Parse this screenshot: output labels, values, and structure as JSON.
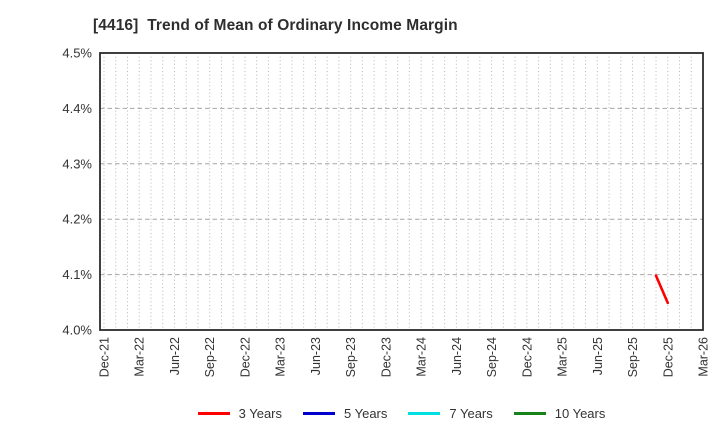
{
  "window": {
    "background": "#ffffff"
  },
  "chart_data": {
    "type": "line",
    "title": "[4416]  Trend of Mean of Ordinary Income Margin",
    "title_color": "#2e2e2e",
    "xlabel": "",
    "ylabel": "",
    "ylim": [
      4.0,
      4.5
    ],
    "y_tick_step": 0.1,
    "y_tick_labels": [
      "4.0%",
      "4.1%",
      "4.2%",
      "4.3%",
      "4.4%",
      "4.5%"
    ],
    "x_tick_labels": [
      "Dec-21",
      "Mar-22",
      "Jun-22",
      "Sep-22",
      "Dec-22",
      "Mar-23",
      "Jun-23",
      "Sep-23",
      "Dec-23",
      "Mar-24",
      "Jun-24",
      "Sep-24",
      "Dec-24",
      "Mar-25",
      "Jun-25",
      "Sep-25",
      "Dec-25",
      "Mar-26"
    ],
    "x_tick_rotation_deg": 90,
    "months_per_tick": 3,
    "total_months": 51,
    "grid": {
      "vertical": "dotted, monthly",
      "horizontal": "dashed, every 0.1%",
      "color_vertical": "#b8b8b8",
      "color_horizontal": "#a6a6a6"
    },
    "axis_color": "#2b2b2b",
    "tick_label_color": "#333333",
    "legend_position": "bottom center",
    "series": [
      {
        "name": "3 Years",
        "color": "#ff0000",
        "points": [
          {
            "label": "Nov-25",
            "month_index": 47,
            "value": 4.098
          },
          {
            "label": "Dec-25",
            "month_index": 48,
            "value": 4.049
          }
        ]
      },
      {
        "name": "5 Years",
        "color": "#0000cc",
        "points": []
      },
      {
        "name": "7 Years",
        "color": "#00e0e0",
        "points": []
      },
      {
        "name": "10 Years",
        "color": "#178217",
        "points": []
      }
    ]
  }
}
